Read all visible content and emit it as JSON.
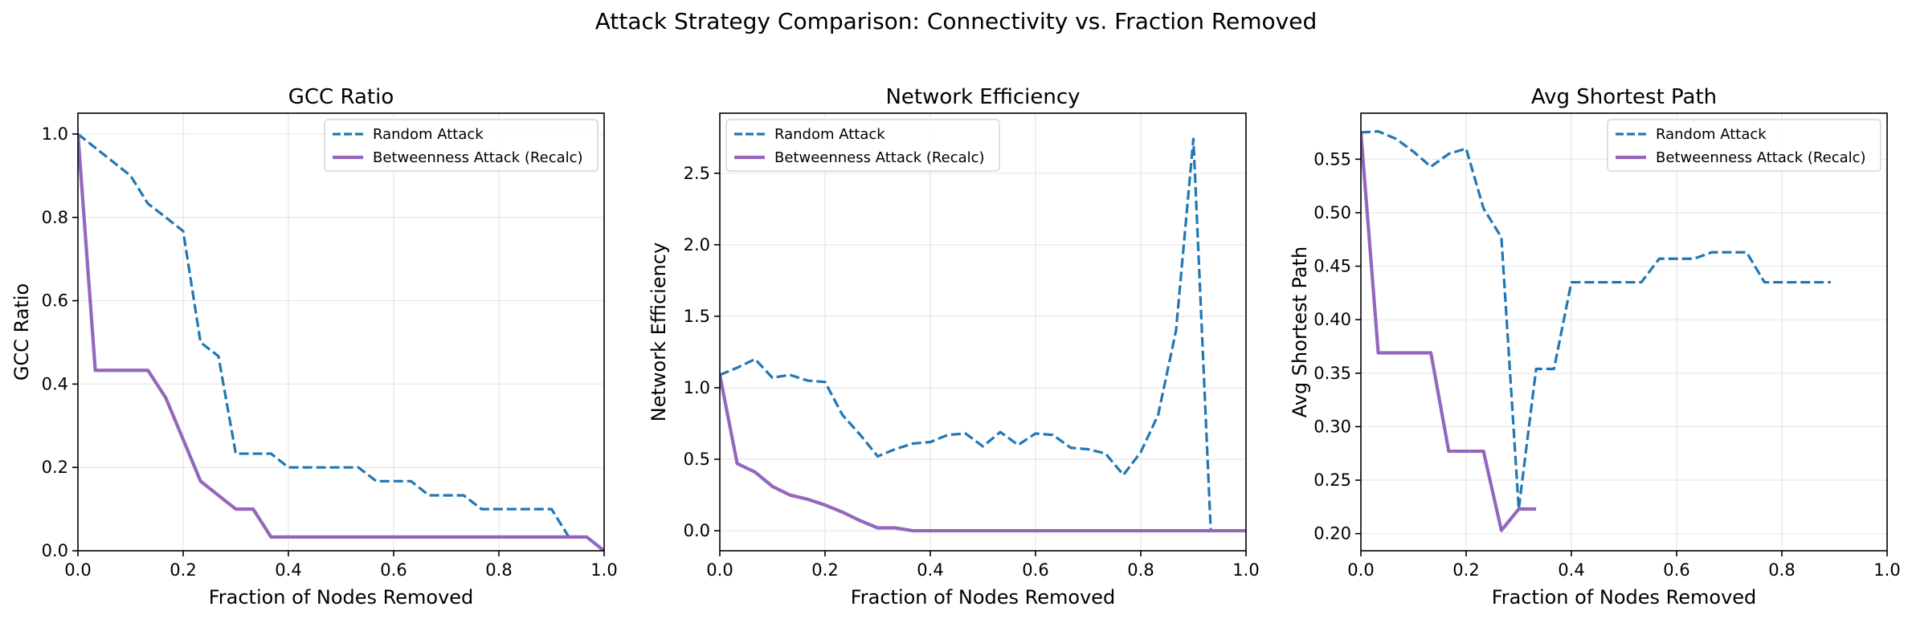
{
  "figure": {
    "suptitle": "Attack Strategy Comparison: Connectivity vs. Fraction Removed"
  },
  "colors": {
    "random": "#1f77b4",
    "betweenness": "#9467bd"
  },
  "chart_data": [
    {
      "type": "line",
      "title": "GCC Ratio",
      "xlabel": "Fraction of Nodes Removed",
      "ylabel": "GCC Ratio",
      "xlim": [
        0,
        1
      ],
      "ylim": [
        0,
        1.05
      ],
      "xticks": [
        "0.0",
        "0.2",
        "0.4",
        "0.6",
        "0.8",
        "1.0"
      ],
      "yticks": [
        "0.0",
        "0.2",
        "0.4",
        "0.6",
        "0.8",
        "1.0"
      ],
      "grid": true,
      "legend": "upper right",
      "series": [
        {
          "name": "Random Attack",
          "style": "dashed",
          "x": [
            0.0,
            0.033,
            0.067,
            0.1,
            0.133,
            0.167,
            0.2,
            0.233,
            0.267,
            0.3,
            0.333,
            0.367,
            0.4,
            0.433,
            0.467,
            0.5,
            0.533,
            0.567,
            0.6,
            0.633,
            0.667,
            0.7,
            0.733,
            0.767,
            0.8,
            0.833,
            0.867,
            0.9,
            0.933,
            0.967,
            1.0
          ],
          "y": [
            1.0,
            0.967,
            0.933,
            0.9,
            0.833,
            0.8,
            0.767,
            0.5,
            0.467,
            0.233,
            0.233,
            0.233,
            0.2,
            0.2,
            0.2,
            0.2,
            0.2,
            0.167,
            0.167,
            0.167,
            0.133,
            0.133,
            0.133,
            0.1,
            0.1,
            0.1,
            0.1,
            0.1,
            0.033,
            0.033,
            0.0
          ]
        },
        {
          "name": "Betweenness Attack (Recalc)",
          "style": "solid",
          "x": [
            0.0,
            0.033,
            0.067,
            0.1,
            0.133,
            0.167,
            0.2,
            0.233,
            0.267,
            0.3,
            0.333,
            0.367,
            0.4,
            0.5,
            0.6,
            0.7,
            0.8,
            0.9,
            0.967,
            1.0
          ],
          "y": [
            1.0,
            0.433,
            0.433,
            0.433,
            0.433,
            0.367,
            0.267,
            0.167,
            0.133,
            0.1,
            0.1,
            0.033,
            0.033,
            0.033,
            0.033,
            0.033,
            0.033,
            0.033,
            0.033,
            0.0
          ]
        }
      ]
    },
    {
      "type": "line",
      "title": "Network Efficiency",
      "xlabel": "Fraction of Nodes Removed",
      "ylabel": "Network Efficiency",
      "xlim": [
        0,
        1
      ],
      "ylim": [
        -0.14,
        2.92
      ],
      "xticks": [
        "0.0",
        "0.2",
        "0.4",
        "0.6",
        "0.8",
        "1.0"
      ],
      "yticks": [
        "0.0",
        "0.5",
        "1.0",
        "1.5",
        "2.0",
        "2.5"
      ],
      "grid": true,
      "legend": "upper left",
      "series": [
        {
          "name": "Random Attack",
          "style": "dashed",
          "x": [
            0.0,
            0.033,
            0.067,
            0.1,
            0.133,
            0.167,
            0.2,
            0.233,
            0.267,
            0.3,
            0.333,
            0.367,
            0.4,
            0.433,
            0.467,
            0.5,
            0.533,
            0.567,
            0.6,
            0.633,
            0.667,
            0.7,
            0.733,
            0.767,
            0.8,
            0.833,
            0.867,
            0.9,
            0.933,
            0.967,
            1.0
          ],
          "y": [
            1.09,
            1.14,
            1.2,
            1.07,
            1.09,
            1.05,
            1.04,
            0.81,
            0.67,
            0.52,
            0.57,
            0.61,
            0.62,
            0.67,
            0.68,
            0.59,
            0.69,
            0.6,
            0.68,
            0.67,
            0.58,
            0.57,
            0.54,
            0.39,
            0.55,
            0.81,
            1.4,
            2.74,
            0.0,
            0.0,
            0.0
          ]
        },
        {
          "name": "Betweenness Attack (Recalc)",
          "style": "solid",
          "x": [
            0.0,
            0.033,
            0.067,
            0.1,
            0.133,
            0.167,
            0.2,
            0.233,
            0.267,
            0.3,
            0.333,
            0.367,
            0.4,
            0.5,
            0.6,
            0.7,
            0.8,
            0.9,
            1.0
          ],
          "y": [
            1.09,
            0.47,
            0.41,
            0.31,
            0.25,
            0.22,
            0.18,
            0.13,
            0.07,
            0.02,
            0.02,
            0.0,
            0.0,
            0.0,
            0.0,
            0.0,
            0.0,
            0.0,
            0.0
          ]
        }
      ]
    },
    {
      "type": "line",
      "title": "Avg Shortest Path",
      "xlabel": "Fraction of Nodes Removed",
      "ylabel": "Avg Shortest Path",
      "xlim": [
        0,
        1
      ],
      "ylim": [
        0.184,
        0.593
      ],
      "xticks": [
        "0.0",
        "0.2",
        "0.4",
        "0.6",
        "0.8",
        "1.0"
      ],
      "yticks": [
        "0.20",
        "0.25",
        "0.30",
        "0.35",
        "0.40",
        "0.45",
        "0.50",
        "0.55"
      ],
      "grid": true,
      "legend": "upper right",
      "series": [
        {
          "name": "Random Attack",
          "style": "dashed",
          "x": [
            0.0,
            0.033,
            0.067,
            0.1,
            0.133,
            0.167,
            0.2,
            0.233,
            0.267,
            0.3,
            0.333,
            0.367,
            0.4,
            0.433,
            0.467,
            0.5,
            0.533,
            0.567,
            0.6,
            0.633,
            0.667,
            0.7,
            0.733,
            0.767,
            0.8,
            0.833,
            0.867,
            0.893
          ],
          "y": [
            0.575,
            0.576,
            0.569,
            0.557,
            0.543,
            0.555,
            0.56,
            0.504,
            0.477,
            0.223,
            0.354,
            0.354,
            0.435,
            0.435,
            0.435,
            0.435,
            0.435,
            0.457,
            0.457,
            0.457,
            0.463,
            0.463,
            0.463,
            0.435,
            0.435,
            0.435,
            0.435,
            0.435
          ]
        },
        {
          "name": "Betweenness Attack (Recalc)",
          "style": "solid",
          "x": [
            0.0,
            0.033,
            0.067,
            0.1,
            0.133,
            0.167,
            0.2,
            0.233,
            0.267,
            0.3,
            0.333
          ],
          "y": [
            0.575,
            0.369,
            0.369,
            0.369,
            0.369,
            0.277,
            0.277,
            0.277,
            0.203,
            0.223,
            0.223
          ]
        }
      ]
    }
  ]
}
